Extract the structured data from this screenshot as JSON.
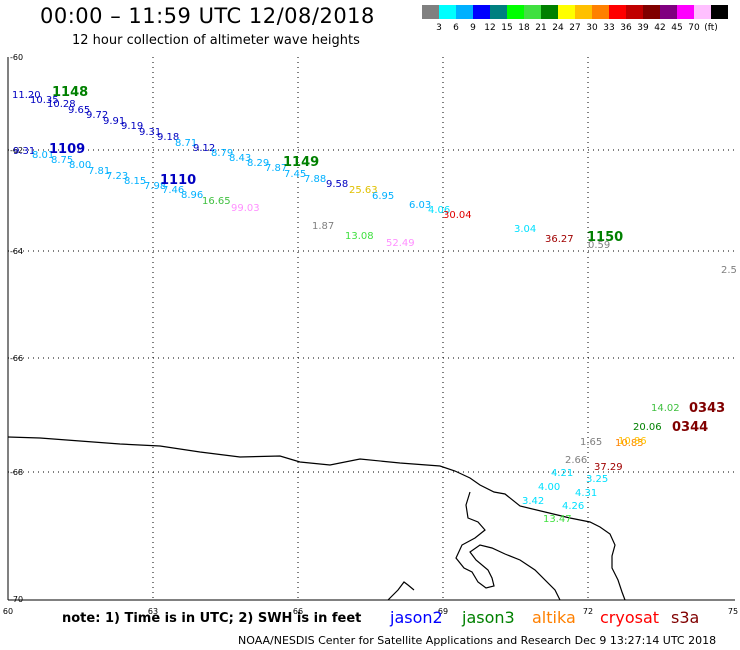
{
  "header": {
    "title": "00:00 – 11:59 UTC 12/08/2018",
    "subtitle": "12 hour collection of altimeter wave heights"
  },
  "scale": {
    "colors": [
      "#808080",
      "#00ffff",
      "#00b0ff",
      "#0000ff",
      "#008080",
      "#00ff00",
      "#40e040",
      "#008000",
      "#ffff00",
      "#ffc000",
      "#ff8000",
      "#ff0000",
      "#c00000",
      "#800000",
      "#800080",
      "#ff00ff",
      "#ffc0ff",
      "#000000"
    ],
    "ticks": [
      "3",
      "6",
      "9",
      "12",
      "15",
      "18",
      "21",
      "24",
      "27",
      "30",
      "33",
      "36",
      "39",
      "42",
      "45",
      "70"
    ],
    "unit": "(ft)"
  },
  "map": {
    "lat_labels": [
      "-60",
      "-62",
      "-64",
      "-66",
      "-68",
      "-70"
    ],
    "lon_labels": [
      "60",
      "63",
      "66",
      "69",
      "72",
      "75"
    ]
  },
  "observations": [
    {
      "text": "11.20",
      "color": "#0000c0"
    },
    {
      "text": "10.35",
      "color": "#0000c0"
    },
    {
      "text": "10.28",
      "color": "#0000c0"
    },
    {
      "text": "9.65",
      "color": "#0000c0"
    },
    {
      "text": "9.72",
      "color": "#0000c0"
    },
    {
      "text": "9.91",
      "color": "#0000c0"
    },
    {
      "text": "9.19",
      "color": "#0000c0"
    },
    {
      "text": "9.31",
      "color": "#0000c0"
    },
    {
      "text": "9.18",
      "color": "#0000c0"
    },
    {
      "text": "8.71",
      "color": "#00b0ff"
    },
    {
      "text": "9.12",
      "color": "#0000c0"
    },
    {
      "text": "8.79",
      "color": "#00b0ff"
    },
    {
      "text": "8.43",
      "color": "#00b0ff"
    },
    {
      "text": "8.29",
      "color": "#00b0ff"
    },
    {
      "text": "7.87",
      "color": "#00b0ff"
    },
    {
      "text": "7.45",
      "color": "#00b0ff"
    },
    {
      "text": "7.88",
      "color": "#00b0ff"
    },
    {
      "text": "9.58",
      "color": "#0000c0"
    },
    {
      "text": "25.63",
      "color": "#e0c000"
    },
    {
      "text": "6.95",
      "color": "#00b0ff"
    },
    {
      "text": "6.03",
      "color": "#00b0ff"
    },
    {
      "text": "4.06",
      "color": "#00e0ff"
    },
    {
      "text": "30.04",
      "color": "#e00000"
    },
    {
      "text": "3.04",
      "color": "#00e0ff"
    },
    {
      "text": "36.27",
      "color": "#a00000"
    },
    {
      "text": "0.59",
      "color": "#808080"
    },
    {
      "text": "9.31",
      "color": "#0000c0"
    },
    {
      "text": "8.01",
      "color": "#00b0ff"
    },
    {
      "text": "8.75",
      "color": "#00b0ff"
    },
    {
      "text": "8.00",
      "color": "#00b0ff"
    },
    {
      "text": "7.81",
      "color": "#00b0ff"
    },
    {
      "text": "7.23",
      "color": "#00b0ff"
    },
    {
      "text": "8.15",
      "color": "#00b0ff"
    },
    {
      "text": "7.98",
      "color": "#00b0ff"
    },
    {
      "text": "7.46",
      "color": "#00b0ff"
    },
    {
      "text": "8.96",
      "color": "#00b0ff"
    },
    {
      "text": "16.65",
      "color": "#40c040"
    },
    {
      "text": "99.03",
      "color": "#ff90ff"
    },
    {
      "text": "1.87",
      "color": "#808080"
    },
    {
      "text": "13.08",
      "color": "#40e040"
    },
    {
      "text": "52.49",
      "color": "#ff90ff"
    },
    {
      "text": "2.5",
      "color": "#808080"
    },
    {
      "text": "14.02",
      "color": "#40c040"
    },
    {
      "text": "20.06",
      "color": "#008000"
    },
    {
      "text": "1.65",
      "color": "#808080"
    },
    {
      "text": "10.85",
      "color": "#ff8000"
    },
    {
      "text": "10.86",
      "color": "#ffc000"
    },
    {
      "text": "2.66",
      "color": "#808080"
    },
    {
      "text": "37.29",
      "color": "#a00000"
    },
    {
      "text": "4.21",
      "color": "#00e0ff"
    },
    {
      "text": "3.25",
      "color": "#00e0ff"
    },
    {
      "text": "4.00",
      "color": "#00e0ff"
    },
    {
      "text": "4.31",
      "color": "#00e0ff"
    },
    {
      "text": "3.42",
      "color": "#00e0ff"
    },
    {
      "text": "4.26",
      "color": "#00e0ff"
    },
    {
      "text": "13.47",
      "color": "#40e040"
    }
  ],
  "pass_times": [
    {
      "text": "1148",
      "color": "#008000"
    },
    {
      "text": "1109",
      "color": "#0000c0"
    },
    {
      "text": "1149",
      "color": "#008000"
    },
    {
      "text": "1110",
      "color": "#0000c0"
    },
    {
      "text": "1150",
      "color": "#008000"
    },
    {
      "text": "0343",
      "color": "#800000"
    },
    {
      "text": "0344",
      "color": "#800000"
    }
  ],
  "footer": {
    "note": "note: 1) Time is in UTC; 2) SWH is in feet",
    "legend": [
      {
        "label": "jason2",
        "color": "#0000ff"
      },
      {
        "label": "jason3",
        "color": "#008000"
      },
      {
        "label": "altika",
        "color": "#ff8000"
      },
      {
        "label": "cryosat",
        "color": "#ff0000"
      },
      {
        "label": "s3a",
        "color": "#800000"
      }
    ],
    "credit": "NOAA/NESDIS Center for Satellite Applications and Research    Dec  9 13:27:14 UTC 2018"
  }
}
